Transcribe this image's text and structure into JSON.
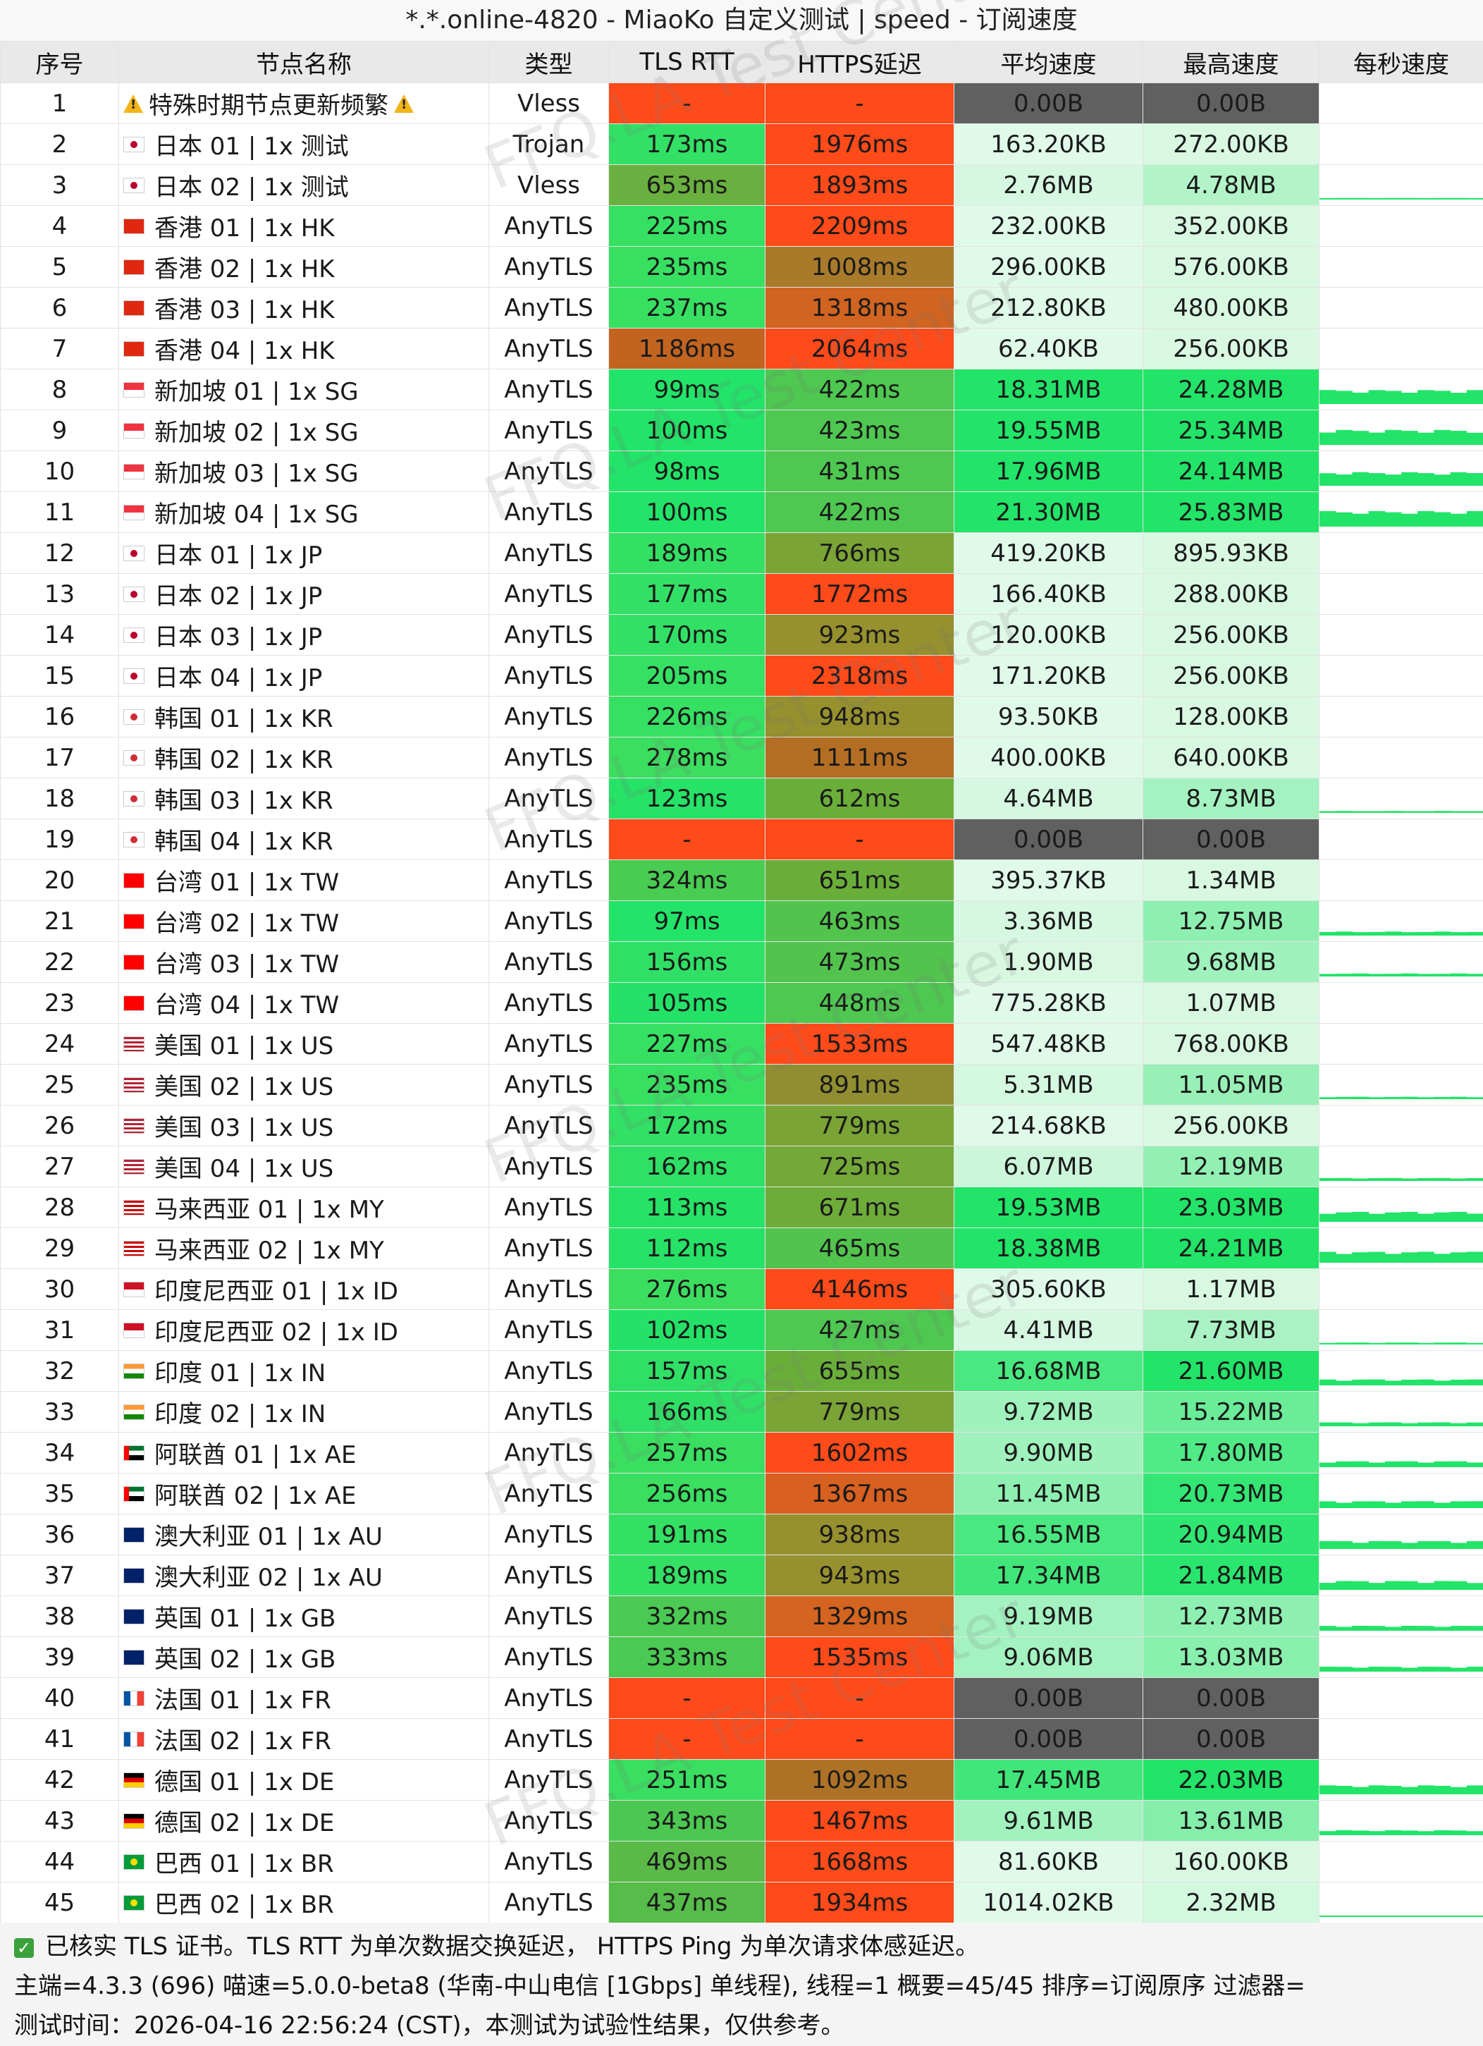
{
  "title": "*.*.online-4820 - MiaoKo 自定义测试 | speed - 订阅速度",
  "headers": [
    "序号",
    "节点名称",
    "类型",
    "TLS RTT",
    "HTTPS延迟",
    "平均速度",
    "最高速度",
    "每秒速度"
  ],
  "watermark_text": "FFQ.LA Test Center",
  "colors": {
    "title_bg": "#f8f8f8",
    "header_bg": "#e9e9e9",
    "latency_fast": "#28e065",
    "latency_mid": "#6aa832",
    "latency_slow": "#b86a20",
    "latency_fail": "#ff4a1a",
    "speed_null": "#606060",
    "speed_low": "#d8f8e2",
    "speed_mid": "#8ef0b0",
    "speed_high": "#22e468",
    "spark": "#22e468"
  },
  "rows": [
    {
      "id": "1",
      "name": "特殊时期节点更新频繁",
      "flag": "warn",
      "type": "Vless",
      "tls": "-",
      "https": "-",
      "avg": "0.00B",
      "max": "0.00B",
      "tls_c": "#ff4a1a",
      "https_c": "#ff4a1a",
      "avg_c": "#606060",
      "max_c": "#606060",
      "spark": 0
    },
    {
      "id": "2",
      "name": "日本 01 | 1x 测试",
      "flag": "jp",
      "type": "Trojan",
      "tls": "173ms",
      "https": "1976ms",
      "avg": "163.20KB",
      "max": "272.00KB",
      "tls_c": "#32e066",
      "https_c": "#ff4a1a",
      "avg_c": "#e0faea",
      "max_c": "#d8f8e2",
      "spark": 0
    },
    {
      "id": "3",
      "name": "日本 02 | 1x 测试",
      "flag": "jp",
      "type": "Vless",
      "tls": "653ms",
      "https": "1893ms",
      "avg": "2.76MB",
      "max": "4.78MB",
      "tls_c": "#6ab040",
      "https_c": "#ff4a1a",
      "avg_c": "#d6f8e2",
      "max_c": "#b2f4c8",
      "spark": 0.08
    },
    {
      "id": "4",
      "name": "香港 01 | 1x HK",
      "flag": "hk",
      "type": "AnyTLS",
      "tls": "225ms",
      "https": "2209ms",
      "avg": "232.00KB",
      "max": "352.00KB",
      "tls_c": "#36e063",
      "https_c": "#ff4a1a",
      "avg_c": "#e0faea",
      "max_c": "#d8f8e2",
      "spark": 0
    },
    {
      "id": "5",
      "name": "香港 02 | 1x HK",
      "flag": "hk",
      "type": "AnyTLS",
      "tls": "235ms",
      "https": "1008ms",
      "avg": "296.00KB",
      "max": "576.00KB",
      "tls_c": "#38e062",
      "https_c": "#a87a2a",
      "avg_c": "#e0faea",
      "max_c": "#d8f8e2",
      "spark": 0
    },
    {
      "id": "6",
      "name": "香港 03 | 1x HK",
      "flag": "hk",
      "type": "AnyTLS",
      "tls": "237ms",
      "https": "1318ms",
      "avg": "212.80KB",
      "max": "480.00KB",
      "tls_c": "#38e062",
      "https_c": "#d06420",
      "avg_c": "#e0faea",
      "max_c": "#d8f8e2",
      "spark": 0
    },
    {
      "id": "7",
      "name": "香港 04 | 1x HK",
      "flag": "hk",
      "type": "AnyTLS",
      "tls": "1186ms",
      "https": "2064ms",
      "avg": "62.40KB",
      "max": "256.00KB",
      "tls_c": "#c26420",
      "https_c": "#ff4a1a",
      "avg_c": "#e0faea",
      "max_c": "#d8f8e2",
      "spark": 0
    },
    {
      "id": "8",
      "name": "新加坡 01 | 1x SG",
      "flag": "sg",
      "type": "AnyTLS",
      "tls": "99ms",
      "https": "422ms",
      "avg": "18.31MB",
      "max": "24.28MB",
      "tls_c": "#22e468",
      "https_c": "#4ec850",
      "avg_c": "#22e468",
      "max_c": "#22e468",
      "spark": 0.7
    },
    {
      "id": "9",
      "name": "新加坡 02 | 1x SG",
      "flag": "sg",
      "type": "AnyTLS",
      "tls": "100ms",
      "https": "423ms",
      "avg": "19.55MB",
      "max": "25.34MB",
      "tls_c": "#22e468",
      "https_c": "#4ec850",
      "avg_c": "#22e468",
      "max_c": "#22e468",
      "spark": 0.75
    },
    {
      "id": "10",
      "name": "新加坡 03 | 1x SG",
      "flag": "sg",
      "type": "AnyTLS",
      "tls": "98ms",
      "https": "431ms",
      "avg": "17.96MB",
      "max": "24.14MB",
      "tls_c": "#22e468",
      "https_c": "#4ec850",
      "avg_c": "#22e468",
      "max_c": "#22e468",
      "spark": 0.68
    },
    {
      "id": "11",
      "name": "新加坡 04 | 1x SG",
      "flag": "sg",
      "type": "AnyTLS",
      "tls": "100ms",
      "https": "422ms",
      "avg": "21.30MB",
      "max": "25.83MB",
      "tls_c": "#22e468",
      "https_c": "#4ec850",
      "avg_c": "#22e468",
      "max_c": "#22e468",
      "spark": 0.78
    },
    {
      "id": "12",
      "name": "日本 01 | 1x JP",
      "flag": "jp",
      "type": "AnyTLS",
      "tls": "189ms",
      "https": "766ms",
      "avg": "419.20KB",
      "max": "895.93KB",
      "tls_c": "#34e064",
      "https_c": "#7aa436",
      "avg_c": "#e0faea",
      "max_c": "#d8f8e2",
      "spark": 0
    },
    {
      "id": "13",
      "name": "日本 02 | 1x JP",
      "flag": "jp",
      "type": "AnyTLS",
      "tls": "177ms",
      "https": "1772ms",
      "avg": "166.40KB",
      "max": "288.00KB",
      "tls_c": "#32e066",
      "https_c": "#ff4a1a",
      "avg_c": "#e0faea",
      "max_c": "#d8f8e2",
      "spark": 0
    },
    {
      "id": "14",
      "name": "日本 03 | 1x JP",
      "flag": "jp",
      "type": "AnyTLS",
      "tls": "170ms",
      "https": "923ms",
      "avg": "120.00KB",
      "max": "256.00KB",
      "tls_c": "#32e066",
      "https_c": "#96902e",
      "avg_c": "#e0faea",
      "max_c": "#d8f8e2",
      "spark": 0
    },
    {
      "id": "15",
      "name": "日本 04 | 1x JP",
      "flag": "jp",
      "type": "AnyTLS",
      "tls": "205ms",
      "https": "2318ms",
      "avg": "171.20KB",
      "max": "256.00KB",
      "tls_c": "#36e063",
      "https_c": "#ff4a1a",
      "avg_c": "#e0faea",
      "max_c": "#d8f8e2",
      "spark": 0
    },
    {
      "id": "16",
      "name": "韩国 01 | 1x KR",
      "flag": "kr",
      "type": "AnyTLS",
      "tls": "226ms",
      "https": "948ms",
      "avg": "93.50KB",
      "max": "128.00KB",
      "tls_c": "#36e063",
      "https_c": "#96902e",
      "avg_c": "#e0faea",
      "max_c": "#d8f8e2",
      "spark": 0
    },
    {
      "id": "17",
      "name": "韩国 02 | 1x KR",
      "flag": "kr",
      "type": "AnyTLS",
      "tls": "278ms",
      "https": "1111ms",
      "avg": "400.00KB",
      "max": "640.00KB",
      "tls_c": "#3cde60",
      "https_c": "#b46e24",
      "avg_c": "#e0faea",
      "max_c": "#d8f8e2",
      "spark": 0
    },
    {
      "id": "18",
      "name": "韩国 03 | 1x KR",
      "flag": "kr",
      "type": "AnyTLS",
      "tls": "123ms",
      "https": "612ms",
      "avg": "4.64MB",
      "max": "8.73MB",
      "tls_c": "#26e266",
      "https_c": "#6aae3a",
      "avg_c": "#d6f8e2",
      "max_c": "#a4f2c0",
      "spark": 0.1
    },
    {
      "id": "19",
      "name": "韩国 04 | 1x KR",
      "flag": "kr",
      "type": "AnyTLS",
      "tls": "-",
      "https": "-",
      "avg": "0.00B",
      "max": "0.00B",
      "tls_c": "#ff4a1a",
      "https_c": "#ff4a1a",
      "avg_c": "#606060",
      "max_c": "#606060",
      "spark": 0
    },
    {
      "id": "20",
      "name": "台湾 01 | 1x TW",
      "flag": "tw",
      "type": "AnyTLS",
      "tls": "324ms",
      "https": "651ms",
      "avg": "395.37KB",
      "max": "1.34MB",
      "tls_c": "#48cc52",
      "https_c": "#6aae3a",
      "avg_c": "#e0faea",
      "max_c": "#d8f8e2",
      "spark": 0
    },
    {
      "id": "21",
      "name": "台湾 02 | 1x TW",
      "flag": "tw",
      "type": "AnyTLS",
      "tls": "97ms",
      "https": "463ms",
      "avg": "3.36MB",
      "max": "12.75MB",
      "tls_c": "#22e468",
      "https_c": "#52c44e",
      "avg_c": "#d6f8e2",
      "max_c": "#8ef0b0",
      "spark": 0.2
    },
    {
      "id": "22",
      "name": "台湾 03 | 1x TW",
      "flag": "tw",
      "type": "AnyTLS",
      "tls": "156ms",
      "https": "473ms",
      "avg": "1.90MB",
      "max": "9.68MB",
      "tls_c": "#30e066",
      "https_c": "#52c44e",
      "avg_c": "#d8f8e2",
      "max_c": "#a0f2bc",
      "spark": 0.15
    },
    {
      "id": "23",
      "name": "台湾 04 | 1x TW",
      "flag": "tw",
      "type": "AnyTLS",
      "tls": "105ms",
      "https": "448ms",
      "avg": "775.28KB",
      "max": "1.07MB",
      "tls_c": "#24e268",
      "https_c": "#4ec850",
      "avg_c": "#e0faea",
      "max_c": "#d8f8e2",
      "spark": 0
    },
    {
      "id": "24",
      "name": "美国 01 | 1x US",
      "flag": "us",
      "type": "AnyTLS",
      "tls": "227ms",
      "https": "1533ms",
      "avg": "547.48KB",
      "max": "768.00KB",
      "tls_c": "#36e063",
      "https_c": "#ff4a1a",
      "avg_c": "#e0faea",
      "max_c": "#d8f8e2",
      "spark": 0
    },
    {
      "id": "25",
      "name": "美国 02 | 1x US",
      "flag": "us",
      "type": "AnyTLS",
      "tls": "235ms",
      "https": "891ms",
      "avg": "5.31MB",
      "max": "11.05MB",
      "tls_c": "#38e062",
      "https_c": "#908e30",
      "avg_c": "#d4f8e0",
      "max_c": "#98f0b6",
      "spark": 0.12
    },
    {
      "id": "26",
      "name": "美国 03 | 1x US",
      "flag": "us",
      "type": "AnyTLS",
      "tls": "172ms",
      "https": "779ms",
      "avg": "214.68KB",
      "max": "256.00KB",
      "tls_c": "#32e066",
      "https_c": "#7aa436",
      "avg_c": "#e0faea",
      "max_c": "#d8f8e2",
      "spark": 0
    },
    {
      "id": "27",
      "name": "美国 04 | 1x US",
      "flag": "us",
      "type": "AnyTLS",
      "tls": "162ms",
      "https": "725ms",
      "avg": "6.07MB",
      "max": "12.19MB",
      "tls_c": "#30e066",
      "https_c": "#74a838",
      "avg_c": "#ccf6da",
      "max_c": "#92f0b2",
      "spark": 0.15
    },
    {
      "id": "28",
      "name": "马来西亚 01 | 1x MY",
      "flag": "my",
      "type": "AnyTLS",
      "tls": "113ms",
      "https": "671ms",
      "avg": "19.53MB",
      "max": "23.03MB",
      "tls_c": "#26e266",
      "https_c": "#6eac3a",
      "avg_c": "#22e468",
      "max_c": "#22e468",
      "spark": 0.5
    },
    {
      "id": "29",
      "name": "马来西亚 02 | 1x MY",
      "flag": "my",
      "type": "AnyTLS",
      "tls": "112ms",
      "https": "465ms",
      "avg": "18.38MB",
      "max": "24.21MB",
      "tls_c": "#26e266",
      "https_c": "#52c44e",
      "avg_c": "#22e468",
      "max_c": "#22e468",
      "spark": 0.55
    },
    {
      "id": "30",
      "name": "印度尼西亚 01 | 1x ID",
      "flag": "id",
      "type": "AnyTLS",
      "tls": "276ms",
      "https": "4146ms",
      "avg": "305.60KB",
      "max": "1.17MB",
      "tls_c": "#3cde60",
      "https_c": "#ff4a1a",
      "avg_c": "#e0faea",
      "max_c": "#d8f8e2",
      "spark": 0
    },
    {
      "id": "31",
      "name": "印度尼西亚 02 | 1x ID",
      "flag": "id",
      "type": "AnyTLS",
      "tls": "102ms",
      "https": "427ms",
      "avg": "4.41MB",
      "max": "7.73MB",
      "tls_c": "#24e268",
      "https_c": "#4ec850",
      "avg_c": "#d6f8e2",
      "max_c": "#aaf2c4",
      "spark": 0.1
    },
    {
      "id": "32",
      "name": "印度 01 | 1x IN",
      "flag": "in",
      "type": "AnyTLS",
      "tls": "157ms",
      "https": "655ms",
      "avg": "16.68MB",
      "max": "21.60MB",
      "tls_c": "#30e066",
      "https_c": "#6aae3a",
      "avg_c": "#4ae880",
      "max_c": "#22e468",
      "spark": 0.3
    },
    {
      "id": "33",
      "name": "印度 02 | 1x IN",
      "flag": "in",
      "type": "AnyTLS",
      "tls": "166ms",
      "https": "779ms",
      "avg": "9.72MB",
      "max": "15.22MB",
      "tls_c": "#30e066",
      "https_c": "#7aa436",
      "avg_c": "#a0f2bc",
      "max_c": "#6aec98",
      "spark": 0.2
    },
    {
      "id": "34",
      "name": "阿联酋 01 | 1x AE",
      "flag": "ae",
      "type": "AnyTLS",
      "tls": "257ms",
      "https": "1602ms",
      "avg": "9.90MB",
      "max": "17.80MB",
      "tls_c": "#3ade60",
      "https_c": "#ff4a1a",
      "avg_c": "#a0f2bc",
      "max_c": "#50ea86",
      "spark": 0.3
    },
    {
      "id": "35",
      "name": "阿联酋 02 | 1x AE",
      "flag": "ae",
      "type": "AnyTLS",
      "tls": "256ms",
      "https": "1367ms",
      "avg": "11.45MB",
      "max": "20.73MB",
      "tls_c": "#3ade60",
      "https_c": "#d86020",
      "avg_c": "#8ef0b0",
      "max_c": "#34e674",
      "spark": 0.35
    },
    {
      "id": "36",
      "name": "澳大利亚 01 | 1x AU",
      "flag": "au",
      "type": "AnyTLS",
      "tls": "191ms",
      "https": "938ms",
      "avg": "16.55MB",
      "max": "20.94MB",
      "tls_c": "#34e064",
      "https_c": "#96902e",
      "avg_c": "#4ae880",
      "max_c": "#30e672",
      "spark": 0.4
    },
    {
      "id": "37",
      "name": "澳大利亚 02 | 1x AU",
      "flag": "au",
      "type": "AnyTLS",
      "tls": "189ms",
      "https": "943ms",
      "avg": "17.34MB",
      "max": "21.84MB",
      "tls_c": "#34e064",
      "https_c": "#96902e",
      "avg_c": "#40e67a",
      "max_c": "#2ae66e",
      "spark": 0.45
    },
    {
      "id": "38",
      "name": "英国 01 | 1x GB",
      "flag": "gb",
      "type": "AnyTLS",
      "tls": "332ms",
      "https": "1329ms",
      "avg": "9.19MB",
      "max": "12.73MB",
      "tls_c": "#4aca52",
      "https_c": "#d46420",
      "avg_c": "#a4f2c0",
      "max_c": "#8ef0b0",
      "spark": 0.25
    },
    {
      "id": "39",
      "name": "英国 02 | 1x GB",
      "flag": "gb",
      "type": "AnyTLS",
      "tls": "333ms",
      "https": "1535ms",
      "avg": "9.06MB",
      "max": "13.03MB",
      "tls_c": "#4aca52",
      "https_c": "#ff4a1a",
      "avg_c": "#a4f2c0",
      "max_c": "#8af0ae",
      "spark": 0.25
    },
    {
      "id": "40",
      "name": "法国 01 | 1x FR",
      "flag": "fr",
      "type": "AnyTLS",
      "tls": "-",
      "https": "-",
      "avg": "0.00B",
      "max": "0.00B",
      "tls_c": "#ff4a1a",
      "https_c": "#ff4a1a",
      "avg_c": "#606060",
      "max_c": "#606060",
      "spark": 0
    },
    {
      "id": "41",
      "name": "法国 02 | 1x FR",
      "flag": "fr",
      "type": "AnyTLS",
      "tls": "-",
      "https": "-",
      "avg": "0.00B",
      "max": "0.00B",
      "tls_c": "#ff4a1a",
      "https_c": "#ff4a1a",
      "avg_c": "#606060",
      "max_c": "#606060",
      "spark": 0
    },
    {
      "id": "42",
      "name": "德国 01 | 1x DE",
      "flag": "de",
      "type": "AnyTLS",
      "tls": "251ms",
      "https": "1092ms",
      "avg": "17.45MB",
      "max": "22.03MB",
      "tls_c": "#3ade60",
      "https_c": "#ae7226",
      "avg_c": "#40e67a",
      "max_c": "#22e468",
      "spark": 0.45
    },
    {
      "id": "43",
      "name": "德国 02 | 1x DE",
      "flag": "de",
      "type": "AnyTLS",
      "tls": "343ms",
      "https": "1467ms",
      "avg": "9.61MB",
      "max": "13.61MB",
      "tls_c": "#4cc852",
      "https_c": "#ff4a1a",
      "avg_c": "#a2f2be",
      "max_c": "#84ee aa",
      "spark": 0.25
    },
    {
      "id": "44",
      "name": "巴西 01 | 1x BR",
      "flag": "br",
      "type": "AnyTLS",
      "tls": "469ms",
      "https": "1668ms",
      "avg": "81.60KB",
      "max": "160.00KB",
      "tls_c": "#5aba48",
      "https_c": "#ff4a1a",
      "avg_c": "#e0faea",
      "max_c": "#d8f8e2",
      "spark": 0
    },
    {
      "id": "45",
      "name": "巴西 02 | 1x BR",
      "flag": "br",
      "type": "AnyTLS",
      "tls": "437ms",
      "https": "1934ms",
      "avg": "1014.02KB",
      "max": "2.32MB",
      "tls_c": "#56bc4a",
      "https_c": "#ff4a1a",
      "avg_c": "#e0faea",
      "max_c": "#d2f8de",
      "spark": 0.03
    }
  ],
  "footer": {
    "line1": "已核实 TLS 证书。TLS RTT 为单次数据交换延迟， HTTPS Ping 为单次请求体感延迟。",
    "line2": "主端=4.3.3 (696) 喵速=5.0.0-beta8 (华南-中山电信 [1Gbps] 单线程), 线程=1 概要=45/45 排序=订阅原序 过滤器=",
    "line3": "测试时间：2026-04-16 22:56:24 (CST)，本测试为试验性结果，仅供参考。"
  }
}
